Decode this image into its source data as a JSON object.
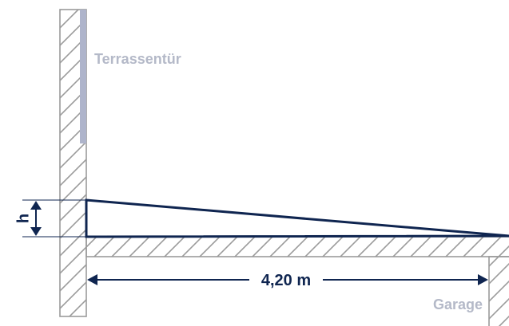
{
  "labels": {
    "door": "Terrassentür",
    "height": "h",
    "length": "4,20 m",
    "garage": "Garage"
  },
  "colors": {
    "primary": "#0f2550",
    "muted": "#b4b9c8",
    "door_fill": "#aeb4cb",
    "hatch": "#9b9b9b"
  }
}
